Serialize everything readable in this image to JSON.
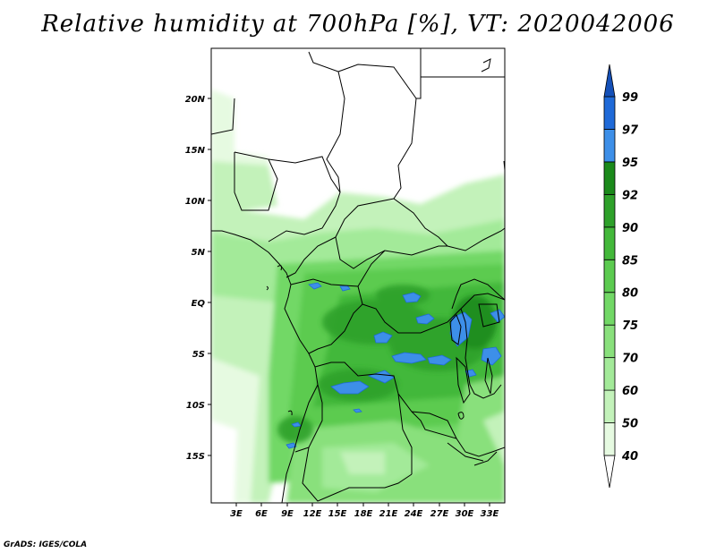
{
  "title": "Relative humidity at 700hPa [%], VT: 2020042006",
  "credit": "GrADS: IGES/COLA",
  "map": {
    "lat_ticks": [
      "20N",
      "15N",
      "10N",
      "5N",
      "EQ",
      "5S",
      "10S",
      "15S"
    ],
    "lon_ticks": [
      "3E",
      "6E",
      "9E",
      "12E",
      "15E",
      "18E",
      "21E",
      "24E",
      "27E",
      "30E",
      "33E"
    ]
  },
  "colorbar": {
    "levels": [
      "40",
      "50",
      "60",
      "70",
      "75",
      "80",
      "85",
      "90",
      "92",
      "95",
      "97",
      "99"
    ],
    "colors": {
      "lt40": "#ffffff",
      "40-50": "#e6fae1",
      "50-60": "#c3f2ba",
      "60-70": "#a3ea99",
      "70-75": "#89e07c",
      "75-80": "#72d866",
      "80-85": "#5ccb50",
      "85-90": "#43b83a",
      "90-92": "#2ea12a",
      "92-95": "#1b8a1b",
      "95-97": "#3d8fe8",
      "97-99": "#1f6ad8",
      "gt99": "#1450b8"
    }
  }
}
